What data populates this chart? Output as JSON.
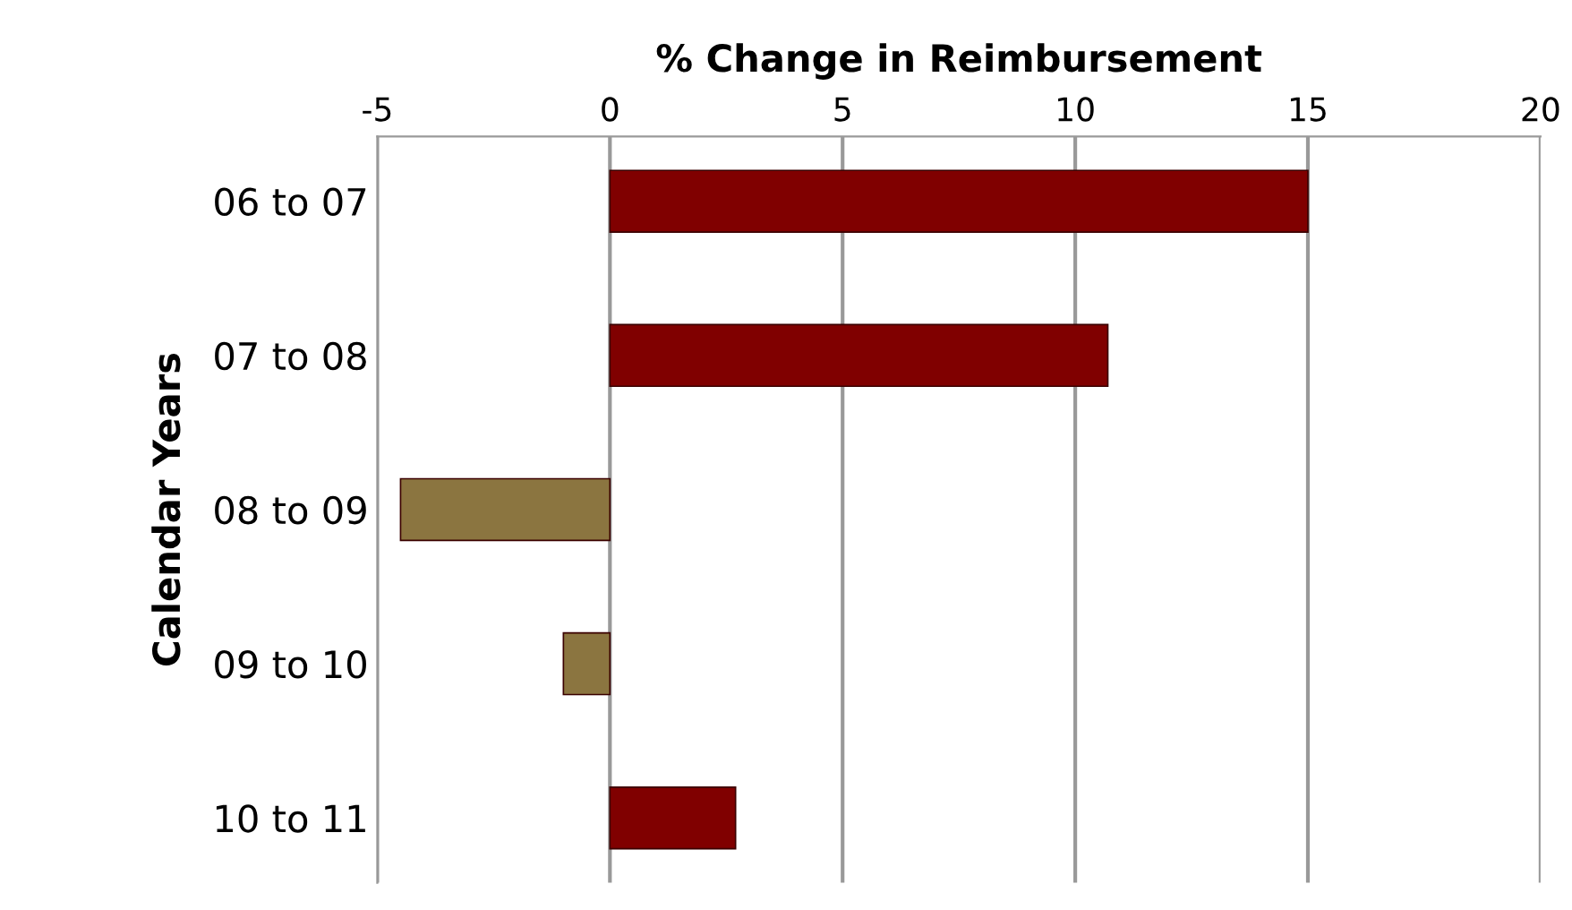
{
  "chart_data": {
    "type": "bar",
    "orientation": "horizontal",
    "xlabel": "% Change in Reimbursement",
    "ylabel": "Calendar Years",
    "categories": [
      "06 to 07",
      "07 to 08",
      "08 to 09",
      "09 to 10",
      "10 to 11"
    ],
    "values": [
      15.0,
      10.7,
      -4.5,
      -1.0,
      2.7
    ],
    "colors": [
      "#800000",
      "#800000",
      "#8b7540",
      "#8b7540",
      "#800000"
    ],
    "xlim": [
      -5,
      20
    ],
    "xticks": [
      -5,
      0,
      5,
      10,
      15,
      20
    ],
    "grid": "x",
    "legend": false
  }
}
